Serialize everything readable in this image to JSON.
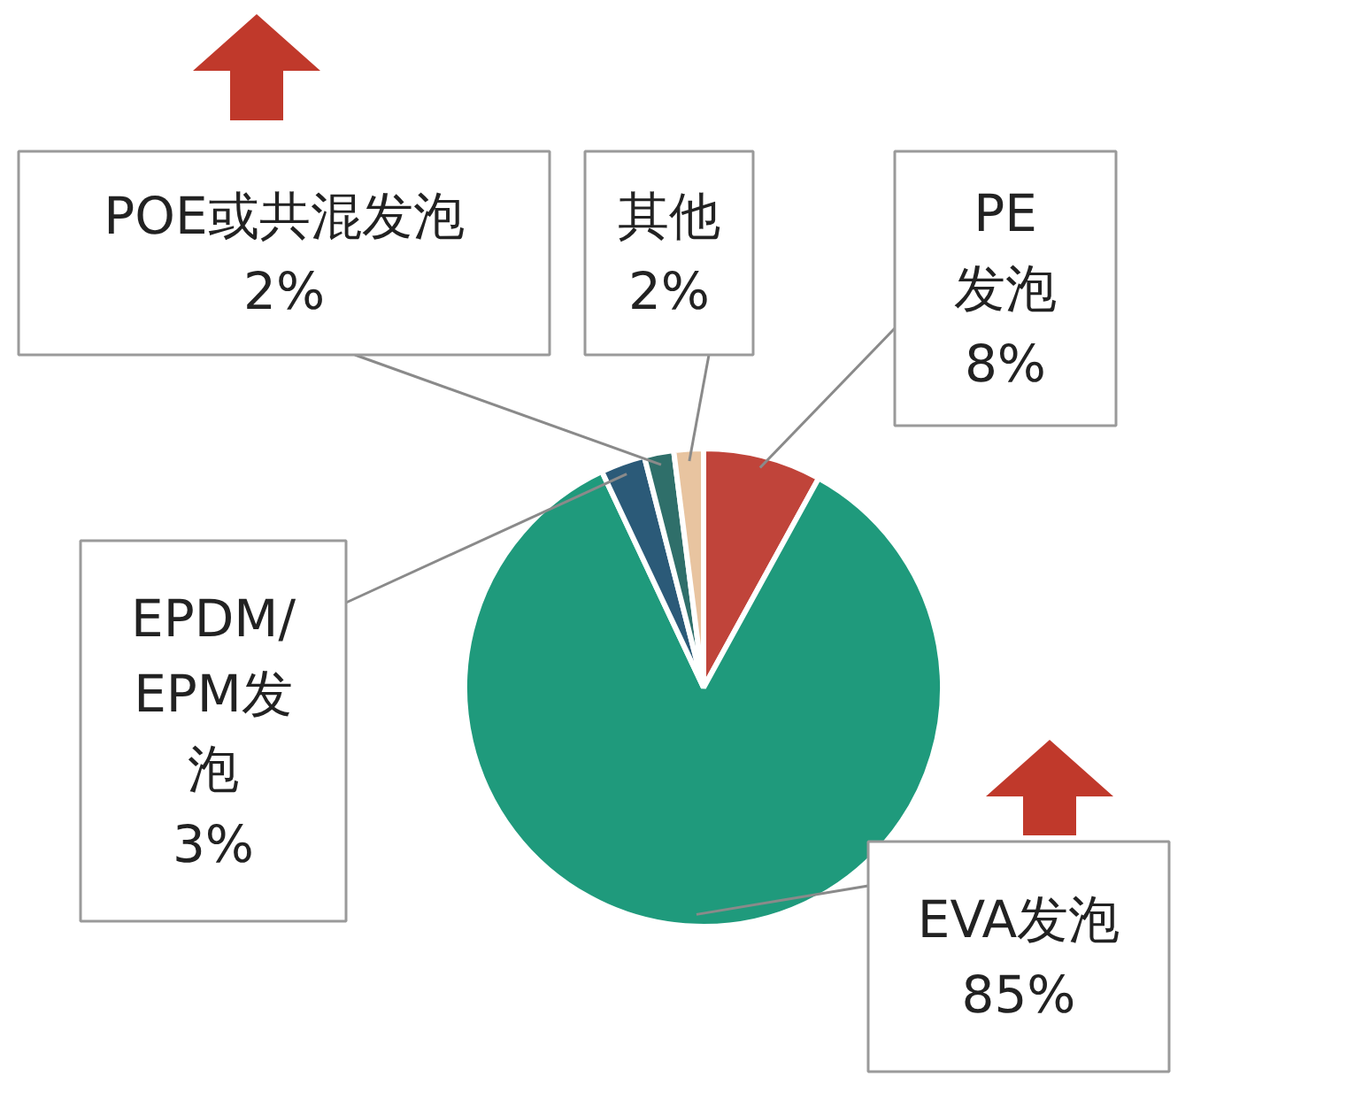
{
  "chart_data": {
    "type": "pie",
    "categories": [
      "PE发泡",
      "EVA发泡",
      "EPDM/EPM发泡",
      "POE或共混发泡",
      "其他"
    ],
    "values": [
      8,
      85,
      3,
      2,
      2
    ],
    "value_labels": [
      "8%",
      "85%",
      "3%",
      "2%",
      "2%"
    ],
    "colors": [
      "#c0443a",
      "#1f9a7c",
      "#2b5a78",
      "#2f6f6a",
      "#e8c4a0"
    ]
  }
}
